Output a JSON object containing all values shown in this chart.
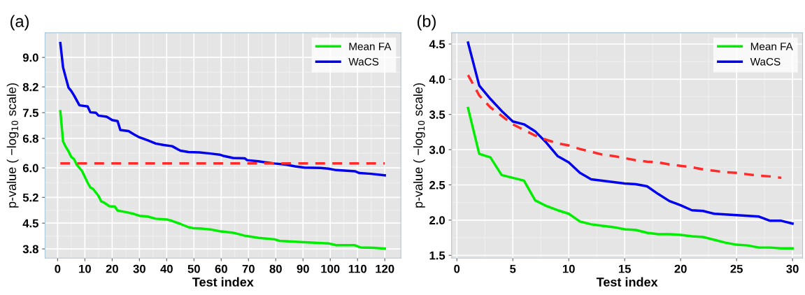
{
  "chart_data": [
    {
      "type": "line",
      "title": "(a)",
      "xlabel": "Test index",
      "ylabel": "p-value ( −log$_{10}$ scale)",
      "xlim": [
        -4.6,
        125.9
      ],
      "ylim": [
        3.55,
        9.67
      ],
      "xticks": [
        0,
        10,
        20,
        30,
        40,
        50,
        60,
        70,
        80,
        90,
        100,
        110,
        120
      ],
      "yticks": [
        3.8,
        4.5,
        5.2,
        {
          "value": 6,
          "label": "6.0"
        },
        6.8,
        7.5,
        8.2,
        {
          "value": 9,
          "label": "9.0"
        }
      ],
      "grid": true,
      "legend": "top right",
      "series": [
        {
          "name": "Mean FA",
          "color": "#00ee00",
          "line_style": "solid",
          "x": [
            1,
            2,
            3,
            4,
            5,
            6,
            7,
            9,
            11,
            12,
            13,
            15,
            16,
            17,
            19,
            21,
            22,
            25,
            28,
            30,
            33,
            36,
            40,
            42,
            45,
            48,
            50,
            53,
            56,
            59.4,
            64.4,
            68.6,
            73.7,
            79.6,
            81.3,
            90.5,
            99.3,
            102.2,
            109,
            111,
            116,
            120
          ],
          "values": [
            7.54,
            6.72,
            6.57,
            6.45,
            6.3,
            6.24,
            6.09,
            5.91,
            5.6,
            5.47,
            5.43,
            5.24,
            5.09,
            5.06,
            4.96,
            4.95,
            4.84,
            4.8,
            4.75,
            4.7,
            4.68,
            4.62,
            4.6,
            4.56,
            4.48,
            4.39,
            4.36,
            4.35,
            4.33,
            4.28,
            4.24,
            4.16,
            4.1,
            4.06,
            4.02,
            3.98,
            3.95,
            3.9,
            3.9,
            3.84,
            3.83,
            3.81
          ]
        },
        {
          "name": "WaCS",
          "color": "#0000ee",
          "line_style": "solid",
          "x": [
            1,
            2,
            3,
            4,
            5,
            6,
            8,
            11,
            12,
            14,
            15,
            18,
            20,
            22,
            23,
            26,
            28,
            30,
            33,
            36,
            39,
            42,
            45,
            48,
            52,
            56,
            59.4,
            61.1,
            64.4,
            68.6,
            69.5,
            73.7,
            76.2,
            79.6,
            83.8,
            87.1,
            90.5,
            96.4,
            99.3,
            102.2,
            109,
            110.7,
            114.9,
            120
          ],
          "values": [
            9.39,
            8.73,
            8.45,
            8.18,
            8.09,
            7.97,
            7.7,
            7.67,
            7.51,
            7.5,
            7.42,
            7.39,
            7.3,
            7.27,
            7.03,
            7.0,
            6.91,
            6.83,
            6.75,
            6.66,
            6.62,
            6.59,
            6.47,
            6.43,
            6.42,
            6.39,
            6.36,
            6.32,
            6.27,
            6.26,
            6.21,
            6.18,
            6.15,
            6.12,
            6.09,
            6.04,
            6.01,
            6.0,
            5.98,
            5.94,
            5.91,
            5.86,
            5.84,
            5.8
          ]
        },
        {
          "color": "#ff2a2a",
          "line_style": "dashed",
          "x": [
            1,
            120
          ],
          "values": [
            6.12,
            6.12
          ]
        }
      ]
    },
    {
      "type": "line",
      "title": "(b)",
      "xlabel": "Test index",
      "ylabel": "p-value ( −log$_{10}$ scale)",
      "xlim": [
        -0.47,
        30.9
      ],
      "ylim": [
        1.46,
        4.66
      ],
      "xticks": [
        0,
        5,
        10,
        15,
        20,
        25,
        30
      ],
      "yticks": [
        1.5,
        {
          "value": 2,
          "label": "2.0"
        },
        2.5,
        {
          "value": 3,
          "label": "3.0"
        },
        3.5,
        {
          "value": 4,
          "label": "4.0"
        },
        4.5
      ],
      "grid": true,
      "legend": "top right",
      "series": [
        {
          "name": "Mean FA",
          "color": "#00ee00",
          "line_style": "solid",
          "x": [
            1,
            2,
            3,
            4,
            5,
            6,
            7,
            8,
            9,
            10,
            11,
            12,
            13,
            14,
            15,
            16,
            17,
            18,
            19,
            20,
            21,
            22,
            23,
            24,
            25,
            26,
            27,
            28,
            29,
            30
          ],
          "values": [
            3.59,
            2.94,
            2.89,
            2.64,
            2.6,
            2.56,
            2.28,
            2.2,
            2.14,
            2.09,
            1.98,
            1.94,
            1.92,
            1.9,
            1.87,
            1.86,
            1.82,
            1.8,
            1.8,
            1.79,
            1.77,
            1.76,
            1.72,
            1.68,
            1.65,
            1.64,
            1.61,
            1.61,
            1.6,
            1.6
          ]
        },
        {
          "name": "WaCS",
          "color": "#0000ee",
          "line_style": "solid",
          "x": [
            1,
            2,
            3,
            4,
            5,
            6,
            7,
            8,
            9,
            10,
            11,
            12,
            13,
            14,
            15,
            16,
            17,
            18,
            19,
            20,
            21,
            22,
            23,
            24,
            25,
            26,
            27,
            28,
            29,
            30
          ],
          "values": [
            4.52,
            3.91,
            3.72,
            3.55,
            3.4,
            3.36,
            3.26,
            3.1,
            2.91,
            2.82,
            2.67,
            2.58,
            2.56,
            2.54,
            2.52,
            2.51,
            2.48,
            2.37,
            2.27,
            2.21,
            2.14,
            2.13,
            2.09,
            2.08,
            2.07,
            2.06,
            2.05,
            1.99,
            1.99,
            1.95
          ]
        },
        {
          "color": "#ff2a2a",
          "line_style": "dashed",
          "x": [
            1,
            2,
            3,
            4,
            5,
            6,
            7,
            8,
            9,
            10,
            11,
            12,
            13,
            14,
            15,
            16,
            17,
            18,
            19,
            20,
            21,
            22,
            23,
            24,
            25,
            26,
            27,
            28,
            29
          ],
          "values": [
            4.06,
            3.77,
            3.6,
            3.48,
            3.36,
            3.28,
            3.2,
            3.14,
            3.09,
            3.06,
            3.01,
            2.97,
            2.93,
            2.91,
            2.88,
            2.85,
            2.83,
            2.82,
            2.79,
            2.77,
            2.75,
            2.72,
            2.7,
            2.68,
            2.67,
            2.65,
            2.63,
            2.62,
            2.6
          ]
        }
      ]
    }
  ]
}
